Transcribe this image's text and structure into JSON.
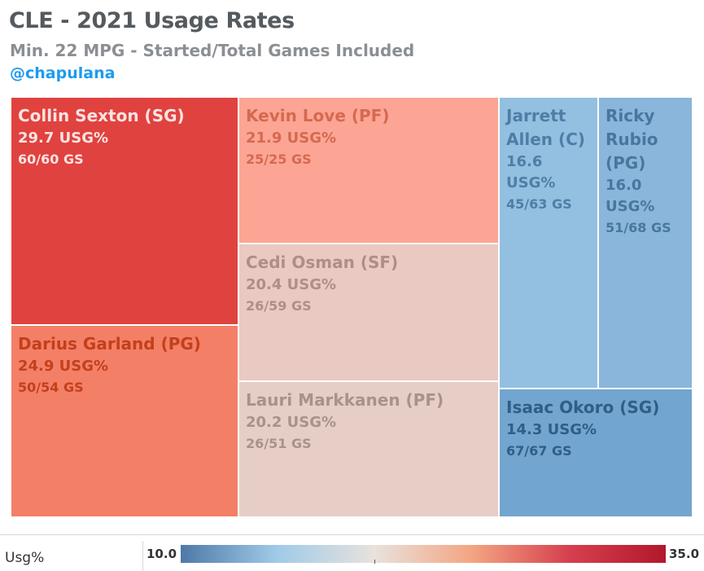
{
  "header": {
    "title": "CLE - 2021 Usage Rates",
    "subtitle": "Min. 22 MPG - Started/Total Games Included",
    "handle": "@chapulana"
  },
  "chart_data": {
    "type": "treemap",
    "title": "CLE - 2021 Usage Rates",
    "subtitle": "Min. 22 MPG - Started/Total Games Included",
    "color_metric": "Usg%",
    "color_range": [
      10.0,
      35.0
    ],
    "color_scale": [
      "#4e79a7",
      "#a0cbe8",
      "#e8e2dc",
      "#f4a582",
      "#d6404e",
      "#b2182b"
    ],
    "items": [
      {
        "name": "Collin Sexton (SG)",
        "usg": 29.7,
        "usg_label": "29.7 USG%",
        "gs_label": "60/60 GS",
        "color": "#e0423f",
        "text_color": "#fbe3e1"
      },
      {
        "name": "Darius Garland (PG)",
        "usg": 24.9,
        "usg_label": "24.9 USG%",
        "gs_label": "50/54 GS",
        "color": "#f47f67",
        "text_color": "#c2401b"
      },
      {
        "name": "Kevin Love (PF)",
        "usg": 21.9,
        "usg_label": "21.9 USG%",
        "gs_label": "25/25 GS",
        "color": "#fca594",
        "text_color": "#d5694f"
      },
      {
        "name": "Cedi Osman (SF)",
        "usg": 20.4,
        "usg_label": "20.4 USG%",
        "gs_label": "26/59 GS",
        "color": "#e9c9c1",
        "text_color": "#b08e86"
      },
      {
        "name": "Lauri Markkanen (PF)",
        "usg": 20.2,
        "usg_label": "20.2 USG%",
        "gs_label": "26/51 GS",
        "color": "#e6cec7",
        "text_color": "#a8928b"
      },
      {
        "name": "Jarrett Allen (C)",
        "usg": 16.6,
        "usg_label": "16.6 USG%",
        "gs_label": "45/63 GS",
        "color": "#93bfe0",
        "text_color": "#4e7ea6"
      },
      {
        "name": "Ricky Rubio (PG)",
        "usg": 16.0,
        "usg_label": "16.0 USG%",
        "gs_label": "51/68 GS",
        "color": "#89b6da",
        "text_color": "#48769e"
      },
      {
        "name": "Isaac Okoro (SG)",
        "usg": 14.3,
        "usg_label": "14.3 USG%",
        "gs_label": "67/67 GS",
        "color": "#72a5cf",
        "text_color": "#2f5e88"
      }
    ]
  },
  "legend": {
    "label": "Usg%",
    "min": "10.0",
    "max": "35.0"
  }
}
